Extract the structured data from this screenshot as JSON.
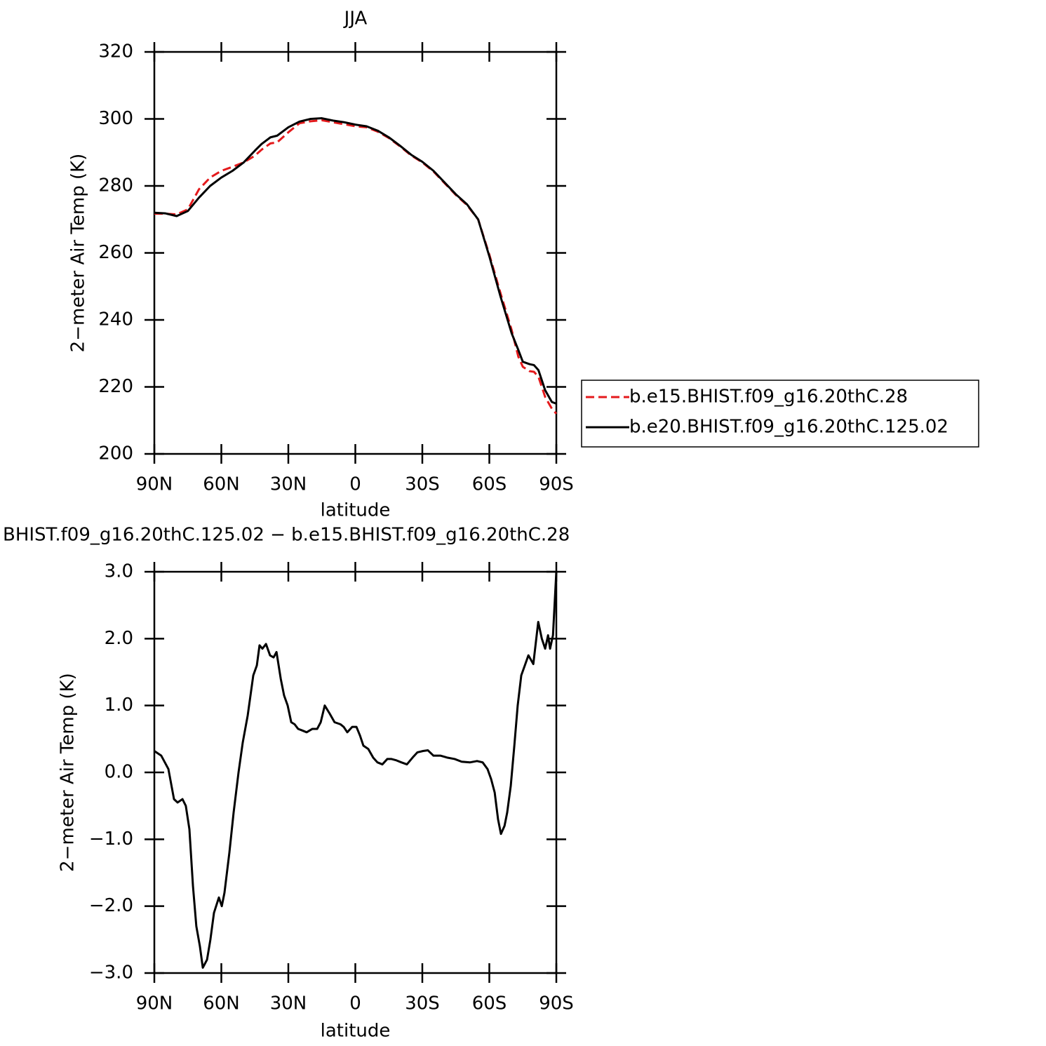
{
  "chart_data": [
    {
      "type": "line",
      "title": "JJA",
      "xlabel": "latitude",
      "ylabel": "2−meter Air Temp (K)",
      "x": [
        90,
        85,
        80,
        75,
        70,
        65,
        60,
        55,
        50,
        45,
        42,
        38,
        35,
        30,
        25,
        20,
        15,
        10,
        5,
        0,
        -5,
        -10,
        -15,
        -20,
        -25,
        -30,
        -35,
        -40,
        -45,
        -50,
        -55,
        -60,
        -65,
        -70,
        -73,
        -75,
        -78,
        -80,
        -82,
        -85,
        -88,
        -90
      ],
      "series": [
        {
          "name": "b.e15.BHIST.f09_g16.20thC.28",
          "color": "#e41a1c",
          "style": "dashed",
          "values": [
            271.7,
            271.7,
            271.5,
            273,
            279,
            282.5,
            284.5,
            285.7,
            287,
            289,
            290.8,
            292.7,
            293,
            296,
            298.7,
            299.3,
            299.6,
            299,
            298.4,
            297.8,
            297.5,
            296.2,
            294.3,
            291.8,
            289.1,
            287,
            284.3,
            280.8,
            277.3,
            274.3,
            270,
            259.5,
            248,
            237,
            229,
            226,
            224.7,
            224.5,
            223,
            217,
            213.5,
            212
          ]
        },
        {
          "name": "b.e20.BHIST.f09_g16.20thC.125.02",
          "color": "#000000",
          "style": "solid",
          "values": [
            272,
            271.8,
            271,
            272.5,
            276.5,
            280,
            282.5,
            284.5,
            287,
            290.5,
            292.5,
            294.5,
            295,
            297.5,
            299.2,
            300,
            300.2,
            299.5,
            299,
            298.3,
            297.8,
            296.5,
            294.5,
            292,
            289.3,
            287.2,
            284.5,
            281,
            277.5,
            274.5,
            270,
            259,
            247,
            236,
            231,
            227.5,
            226.8,
            226.5,
            225,
            219,
            215.5,
            215
          ]
        }
      ],
      "legend": "outside right",
      "xlim": [
        90,
        -90
      ],
      "xticks": [
        {
          "value": 90,
          "label": "90N"
        },
        {
          "value": 60,
          "label": "60N"
        },
        {
          "value": 30,
          "label": "30N"
        },
        0,
        {
          "value": -30,
          "label": "30S"
        },
        {
          "value": -60,
          "label": "60S"
        },
        {
          "value": -90,
          "label": "90S"
        }
      ],
      "ylim": [
        200,
        320
      ],
      "yticks": [
        200,
        220,
        240,
        260,
        280,
        300,
        320
      ]
    },
    {
      "type": "line",
      "title": "BHIST.f09_g16.20thC.125.02 − b.e15.BHIST.f09_g16.20thC.28",
      "xlabel": "latitude",
      "ylabel": "2−meter Air Temp (K)",
      "x": [
        90,
        86.9,
        83.7,
        81.2,
        79.6,
        77.4,
        75.9,
        74.3,
        72.7,
        71.2,
        69.6,
        68.3,
        66.4,
        64.9,
        63.3,
        61.1,
        59.8,
        58.6,
        56.4,
        54.5,
        52.3,
        50.4,
        48.2,
        45.7,
        44.1,
        42.9,
        41.6,
        40.0,
        38.2,
        36.6,
        35.3,
        33.4,
        31.9,
        30.3,
        28.7,
        27.2,
        25.6,
        24.0,
        21.8,
        19.3,
        17.1,
        15.5,
        13.7,
        11.5,
        9.3,
        6.7,
        5.2,
        3.6,
        1.4,
        -0.5,
        -2.1,
        -3.6,
        -5.8,
        -8.0,
        -9.9,
        -12.1,
        -14.3,
        -16.2,
        -18.4,
        -20.6,
        -23.1,
        -25.6,
        -27.8,
        -30.3,
        -32.5,
        -35.0,
        -38.2,
        -41.3,
        -44.5,
        -47.6,
        -51.4,
        -54.5,
        -57.0,
        -59.2,
        -60.8,
        -62.4,
        -63.9,
        -65.2,
        -66.8,
        -68.0,
        -69.6,
        -71.2,
        -72.7,
        -74.3,
        -75.9,
        -77.5,
        -79.7,
        -81.9,
        -83.5,
        -85.0,
        -86.3,
        -87.2,
        -88.5,
        -90
      ],
      "series": [
        {
          "color": "#000000",
          "style": "solid",
          "values": [
            0.32,
            0.25,
            0.05,
            -0.4,
            -0.45,
            -0.4,
            -0.5,
            -0.85,
            -1.7,
            -2.3,
            -2.6,
            -2.92,
            -2.8,
            -2.5,
            -2.1,
            -1.87,
            -2.0,
            -1.8,
            -1.2,
            -0.6,
            0,
            0.45,
            0.85,
            1.45,
            1.6,
            1.9,
            1.85,
            1.92,
            1.75,
            1.72,
            1.8,
            1.4,
            1.15,
            1.0,
            0.75,
            0.72,
            0.65,
            0.63,
            0.6,
            0.65,
            0.65,
            0.75,
            1.0,
            0.88,
            0.75,
            0.72,
            0.68,
            0.6,
            0.68,
            0.68,
            0.55,
            0.4,
            0.35,
            0.22,
            0.15,
            0.12,
            0.2,
            0.2,
            0.18,
            0.15,
            0.12,
            0.22,
            0.3,
            0.32,
            0.33,
            0.25,
            0.25,
            0.22,
            0.2,
            0.16,
            0.15,
            0.17,
            0.15,
            0.05,
            -0.1,
            -0.3,
            -0.7,
            -0.92,
            -0.8,
            -0.6,
            -0.2,
            0.4,
            1.0,
            1.45,
            1.6,
            1.75,
            1.62,
            2.25,
            2.0,
            1.85,
            2.05,
            1.85,
            2.05,
            3.0
          ]
        }
      ],
      "xlim": [
        90,
        -90
      ],
      "xticks": [
        {
          "value": 90,
          "label": "90N"
        },
        {
          "value": 60,
          "label": "60N"
        },
        {
          "value": 30,
          "label": "30N"
        },
        0,
        {
          "value": -30,
          "label": "30S"
        },
        {
          "value": -60,
          "label": "60S"
        },
        {
          "value": -90,
          "label": "90S"
        }
      ],
      "ylim": [
        -3,
        3
      ],
      "yticks": [
        {
          "value": -3,
          "label": "−3.0"
        },
        {
          "value": -2,
          "label": "−2.0"
        },
        {
          "value": -1,
          "label": "−1.0"
        },
        {
          "value": 0,
          "label": "0.0"
        },
        {
          "value": 1,
          "label": "1.0"
        },
        {
          "value": 2,
          "label": "2.0"
        },
        {
          "value": 3,
          "label": "3.0"
        }
      ]
    }
  ]
}
